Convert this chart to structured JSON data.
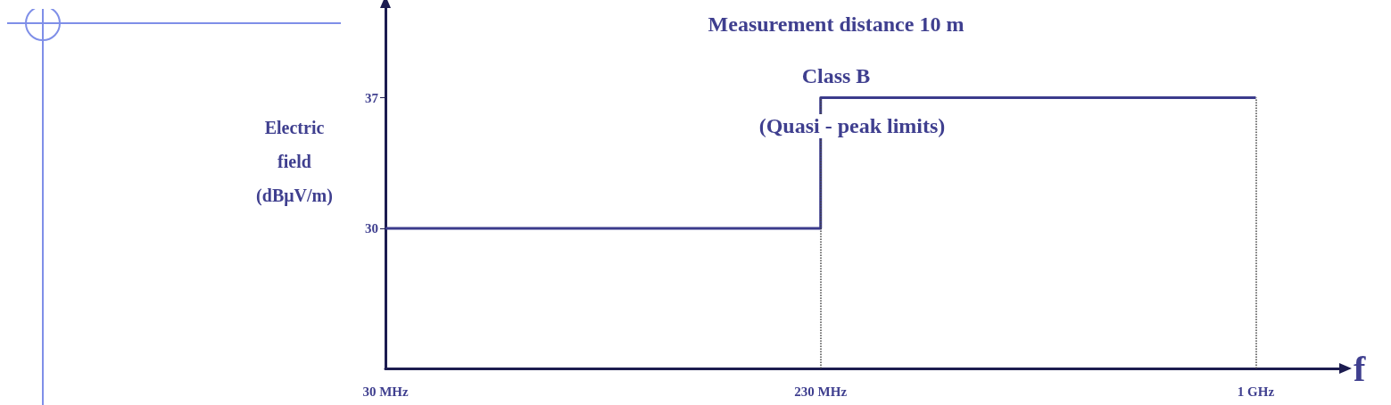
{
  "chart_data": {
    "type": "step",
    "title": "Measurement distance 10 m",
    "subtitle": "Class B",
    "annotations": [
      "(Quasi - peak limits)"
    ],
    "xlabel": "f",
    "ylabel": "Electric field (dBμV/m)",
    "categories": [
      "30 MHz",
      "230 MHz",
      "1 GHz"
    ],
    "series": [
      {
        "color": "#3b3b8c",
        "values": [
          30,
          37,
          37
        ]
      }
    ],
    "ylim": [
      22.5,
      42
    ],
    "yticks": [
      30,
      37
    ],
    "ref_lines": [
      {
        "axis": "x",
        "value": "230 MHz",
        "color": "#444444",
        "line_style": "dotted"
      },
      {
        "axis": "x",
        "value": "1 GHz",
        "color": "#444444",
        "line_style": "dotted"
      }
    ],
    "grid": false,
    "marker": "none",
    "line_style": "solid"
  }
}
